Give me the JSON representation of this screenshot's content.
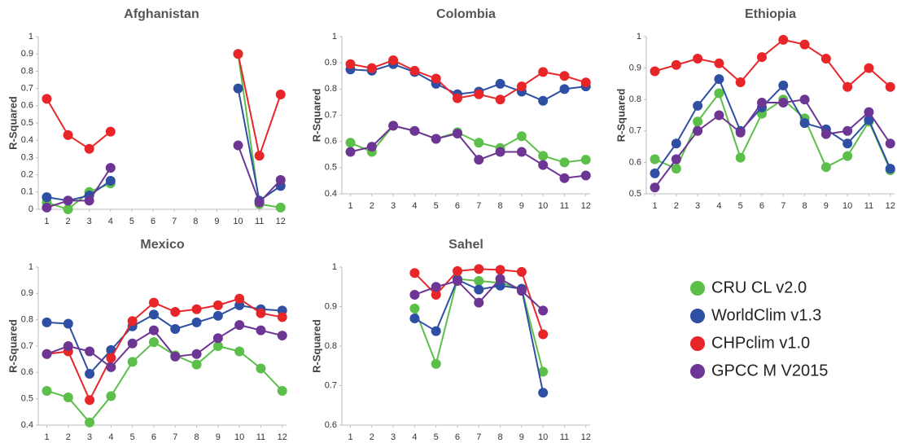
{
  "chart_data": [
    {
      "type": "line",
      "title": "Afghanistan",
      "y_label": "R-Squared",
      "x": [
        1,
        2,
        3,
        4,
        5,
        6,
        7,
        8,
        9,
        10,
        11,
        12
      ],
      "xlim": [
        0.6,
        12.2
      ],
      "xticks": [
        1,
        2,
        3,
        4,
        5,
        6,
        7,
        8,
        9,
        10,
        11,
        12
      ],
      "ylim": [
        0,
        1
      ],
      "yticks": [
        0,
        0.1,
        0.2,
        0.3,
        0.4,
        0.5,
        0.6,
        0.7,
        0.8,
        0.9,
        1
      ],
      "grid": false,
      "series": [
        {
          "name": "CRU CL v2.0",
          "color": "#5cbf4a",
          "values": [
            0.04,
            0.0,
            0.1,
            0.15,
            null,
            null,
            null,
            null,
            null,
            0.9,
            0.03,
            0.01
          ]
        },
        {
          "name": "WorldClim v1.3",
          "color": "#2e4fa3",
          "values": [
            0.07,
            0.05,
            0.08,
            0.165,
            null,
            null,
            null,
            null,
            null,
            0.7,
            0.05,
            0.135
          ]
        },
        {
          "name": "CHPclim v1.0",
          "color": "#e8262a",
          "values": [
            0.64,
            0.43,
            0.35,
            0.45,
            null,
            null,
            null,
            null,
            null,
            0.9,
            0.31,
            0.665
          ]
        },
        {
          "name": "GPCC M V2015",
          "color": "#6d3594",
          "values": [
            0.01,
            0.05,
            0.05,
            0.24,
            null,
            null,
            null,
            null,
            null,
            0.37,
            0.04,
            0.17
          ]
        }
      ]
    },
    {
      "type": "line",
      "title": "Colombia",
      "y_label": "R-Squared",
      "x": [
        1,
        2,
        3,
        4,
        5,
        6,
        7,
        8,
        9,
        10,
        11,
        12
      ],
      "xlim": [
        0.6,
        12.2
      ],
      "xticks": [
        1,
        2,
        3,
        4,
        5,
        6,
        7,
        8,
        9,
        10,
        11,
        12
      ],
      "ylim": [
        0.4,
        1
      ],
      "yticks": [
        0.4,
        0.5,
        0.6,
        0.7,
        0.8,
        0.9,
        1
      ],
      "grid": false,
      "series": [
        {
          "name": "CRU CL v2.0",
          "color": "#5cbf4a",
          "values": [
            0.595,
            0.56,
            0.66,
            0.64,
            0.61,
            0.635,
            0.595,
            0.575,
            0.62,
            0.545,
            0.52,
            0.53
          ]
        },
        {
          "name": "WorldClim v1.3",
          "color": "#2e4fa3",
          "values": [
            0.875,
            0.87,
            0.895,
            0.865,
            0.82,
            0.78,
            0.79,
            0.82,
            0.79,
            0.755,
            0.8,
            0.81
          ]
        },
        {
          "name": "CHPclim v1.0",
          "color": "#e8262a",
          "values": [
            0.895,
            0.88,
            0.91,
            0.87,
            0.84,
            0.765,
            0.78,
            0.76,
            0.81,
            0.865,
            0.85,
            0.825
          ]
        },
        {
          "name": "GPCC M V2015",
          "color": "#6d3594",
          "values": [
            0.56,
            0.58,
            0.66,
            0.64,
            0.61,
            0.63,
            0.53,
            0.56,
            0.56,
            0.51,
            0.46,
            0.47
          ]
        }
      ]
    },
    {
      "type": "line",
      "title": "Ethiopia",
      "y_label": "R-Squared",
      "x": [
        1,
        2,
        3,
        4,
        5,
        6,
        7,
        8,
        9,
        10,
        11,
        12
      ],
      "xlim": [
        0.6,
        12.2
      ],
      "xticks": [
        1,
        2,
        3,
        4,
        5,
        6,
        7,
        8,
        9,
        10,
        11,
        12
      ],
      "ylim": [
        0.5,
        1
      ],
      "yticks": [
        0.5,
        0.6,
        0.7,
        0.8,
        0.9,
        1
      ],
      "grid": false,
      "series": [
        {
          "name": "CRU CL v2.0",
          "color": "#5cbf4a",
          "values": [
            0.61,
            0.58,
            0.73,
            0.82,
            0.615,
            0.755,
            0.8,
            0.74,
            0.585,
            0.62,
            0.73,
            0.575
          ]
        },
        {
          "name": "WorldClim v1.3",
          "color": "#2e4fa3",
          "values": [
            0.565,
            0.66,
            0.78,
            0.865,
            0.7,
            0.775,
            0.845,
            0.725,
            0.705,
            0.66,
            0.735,
            0.58
          ]
        },
        {
          "name": "CHPclim v1.0",
          "color": "#e8262a",
          "values": [
            0.89,
            0.91,
            0.93,
            0.915,
            0.855,
            0.935,
            0.99,
            0.975,
            0.93,
            0.84,
            0.9,
            0.84
          ]
        },
        {
          "name": "GPCC M V2015",
          "color": "#6d3594",
          "values": [
            0.52,
            0.61,
            0.7,
            0.75,
            0.695,
            0.79,
            0.79,
            0.8,
            0.69,
            0.7,
            0.76,
            0.66
          ]
        }
      ]
    },
    {
      "type": "line",
      "title": "Mexico",
      "y_label": "R-Squared",
      "x": [
        1,
        2,
        3,
        4,
        5,
        6,
        7,
        8,
        9,
        10,
        11,
        12
      ],
      "xlim": [
        0.6,
        12.2
      ],
      "xticks": [
        1,
        2,
        3,
        4,
        5,
        6,
        7,
        8,
        9,
        10,
        11,
        12
      ],
      "ylim": [
        0.4,
        1
      ],
      "yticks": [
        0.4,
        0.5,
        0.6,
        0.7,
        0.8,
        0.9,
        1
      ],
      "grid": false,
      "series": [
        {
          "name": "CRU CL v2.0",
          "color": "#5cbf4a",
          "values": [
            0.53,
            0.505,
            0.41,
            0.51,
            0.64,
            0.715,
            0.665,
            0.63,
            0.7,
            0.68,
            0.615,
            0.53
          ]
        },
        {
          "name": "WorldClim v1.3",
          "color": "#2e4fa3",
          "values": [
            0.79,
            0.785,
            0.595,
            0.685,
            0.775,
            0.82,
            0.765,
            0.79,
            0.815,
            0.855,
            0.84,
            0.835
          ]
        },
        {
          "name": "CHPclim v1.0",
          "color": "#e8262a",
          "values": [
            0.67,
            0.68,
            0.495,
            0.655,
            0.795,
            0.865,
            0.83,
            0.84,
            0.855,
            0.88,
            0.825,
            0.81
          ]
        },
        {
          "name": "GPCC M V2015",
          "color": "#6d3594",
          "values": [
            0.67,
            0.7,
            0.68,
            0.62,
            0.71,
            0.76,
            0.66,
            0.67,
            0.73,
            0.78,
            0.76,
            0.74
          ]
        }
      ]
    },
    {
      "type": "line",
      "title": "Sahel",
      "y_label": "R-Squared",
      "x": [
        1,
        2,
        3,
        4,
        5,
        6,
        7,
        8,
        9,
        10,
        11,
        12
      ],
      "xlim": [
        0.6,
        12.2
      ],
      "xticks": [
        1,
        2,
        3,
        4,
        5,
        6,
        7,
        8,
        9,
        10,
        11,
        12
      ],
      "ylim": [
        0.6,
        1
      ],
      "yticks": [
        0.6,
        0.7,
        0.8,
        0.9,
        1
      ],
      "grid": false,
      "series": [
        {
          "name": "CRU CL v2.0",
          "color": "#5cbf4a",
          "values": [
            null,
            null,
            null,
            0.895,
            0.755,
            0.97,
            0.965,
            0.96,
            0.945,
            0.735,
            null,
            null
          ]
        },
        {
          "name": "WorldClim v1.3",
          "color": "#2e4fa3",
          "values": [
            null,
            null,
            null,
            0.87,
            0.838,
            0.968,
            0.943,
            0.953,
            0.945,
            0.682,
            null,
            null
          ]
        },
        {
          "name": "CHPclim v1.0",
          "color": "#e8262a",
          "values": [
            null,
            null,
            null,
            0.985,
            0.93,
            0.99,
            0.995,
            0.993,
            0.988,
            0.83,
            null,
            null
          ]
        },
        {
          "name": "GPCC M V2015",
          "color": "#6d3594",
          "values": [
            null,
            null,
            null,
            0.93,
            0.95,
            0.965,
            0.91,
            0.97,
            0.94,
            0.89,
            null,
            null
          ]
        }
      ]
    }
  ]
}
